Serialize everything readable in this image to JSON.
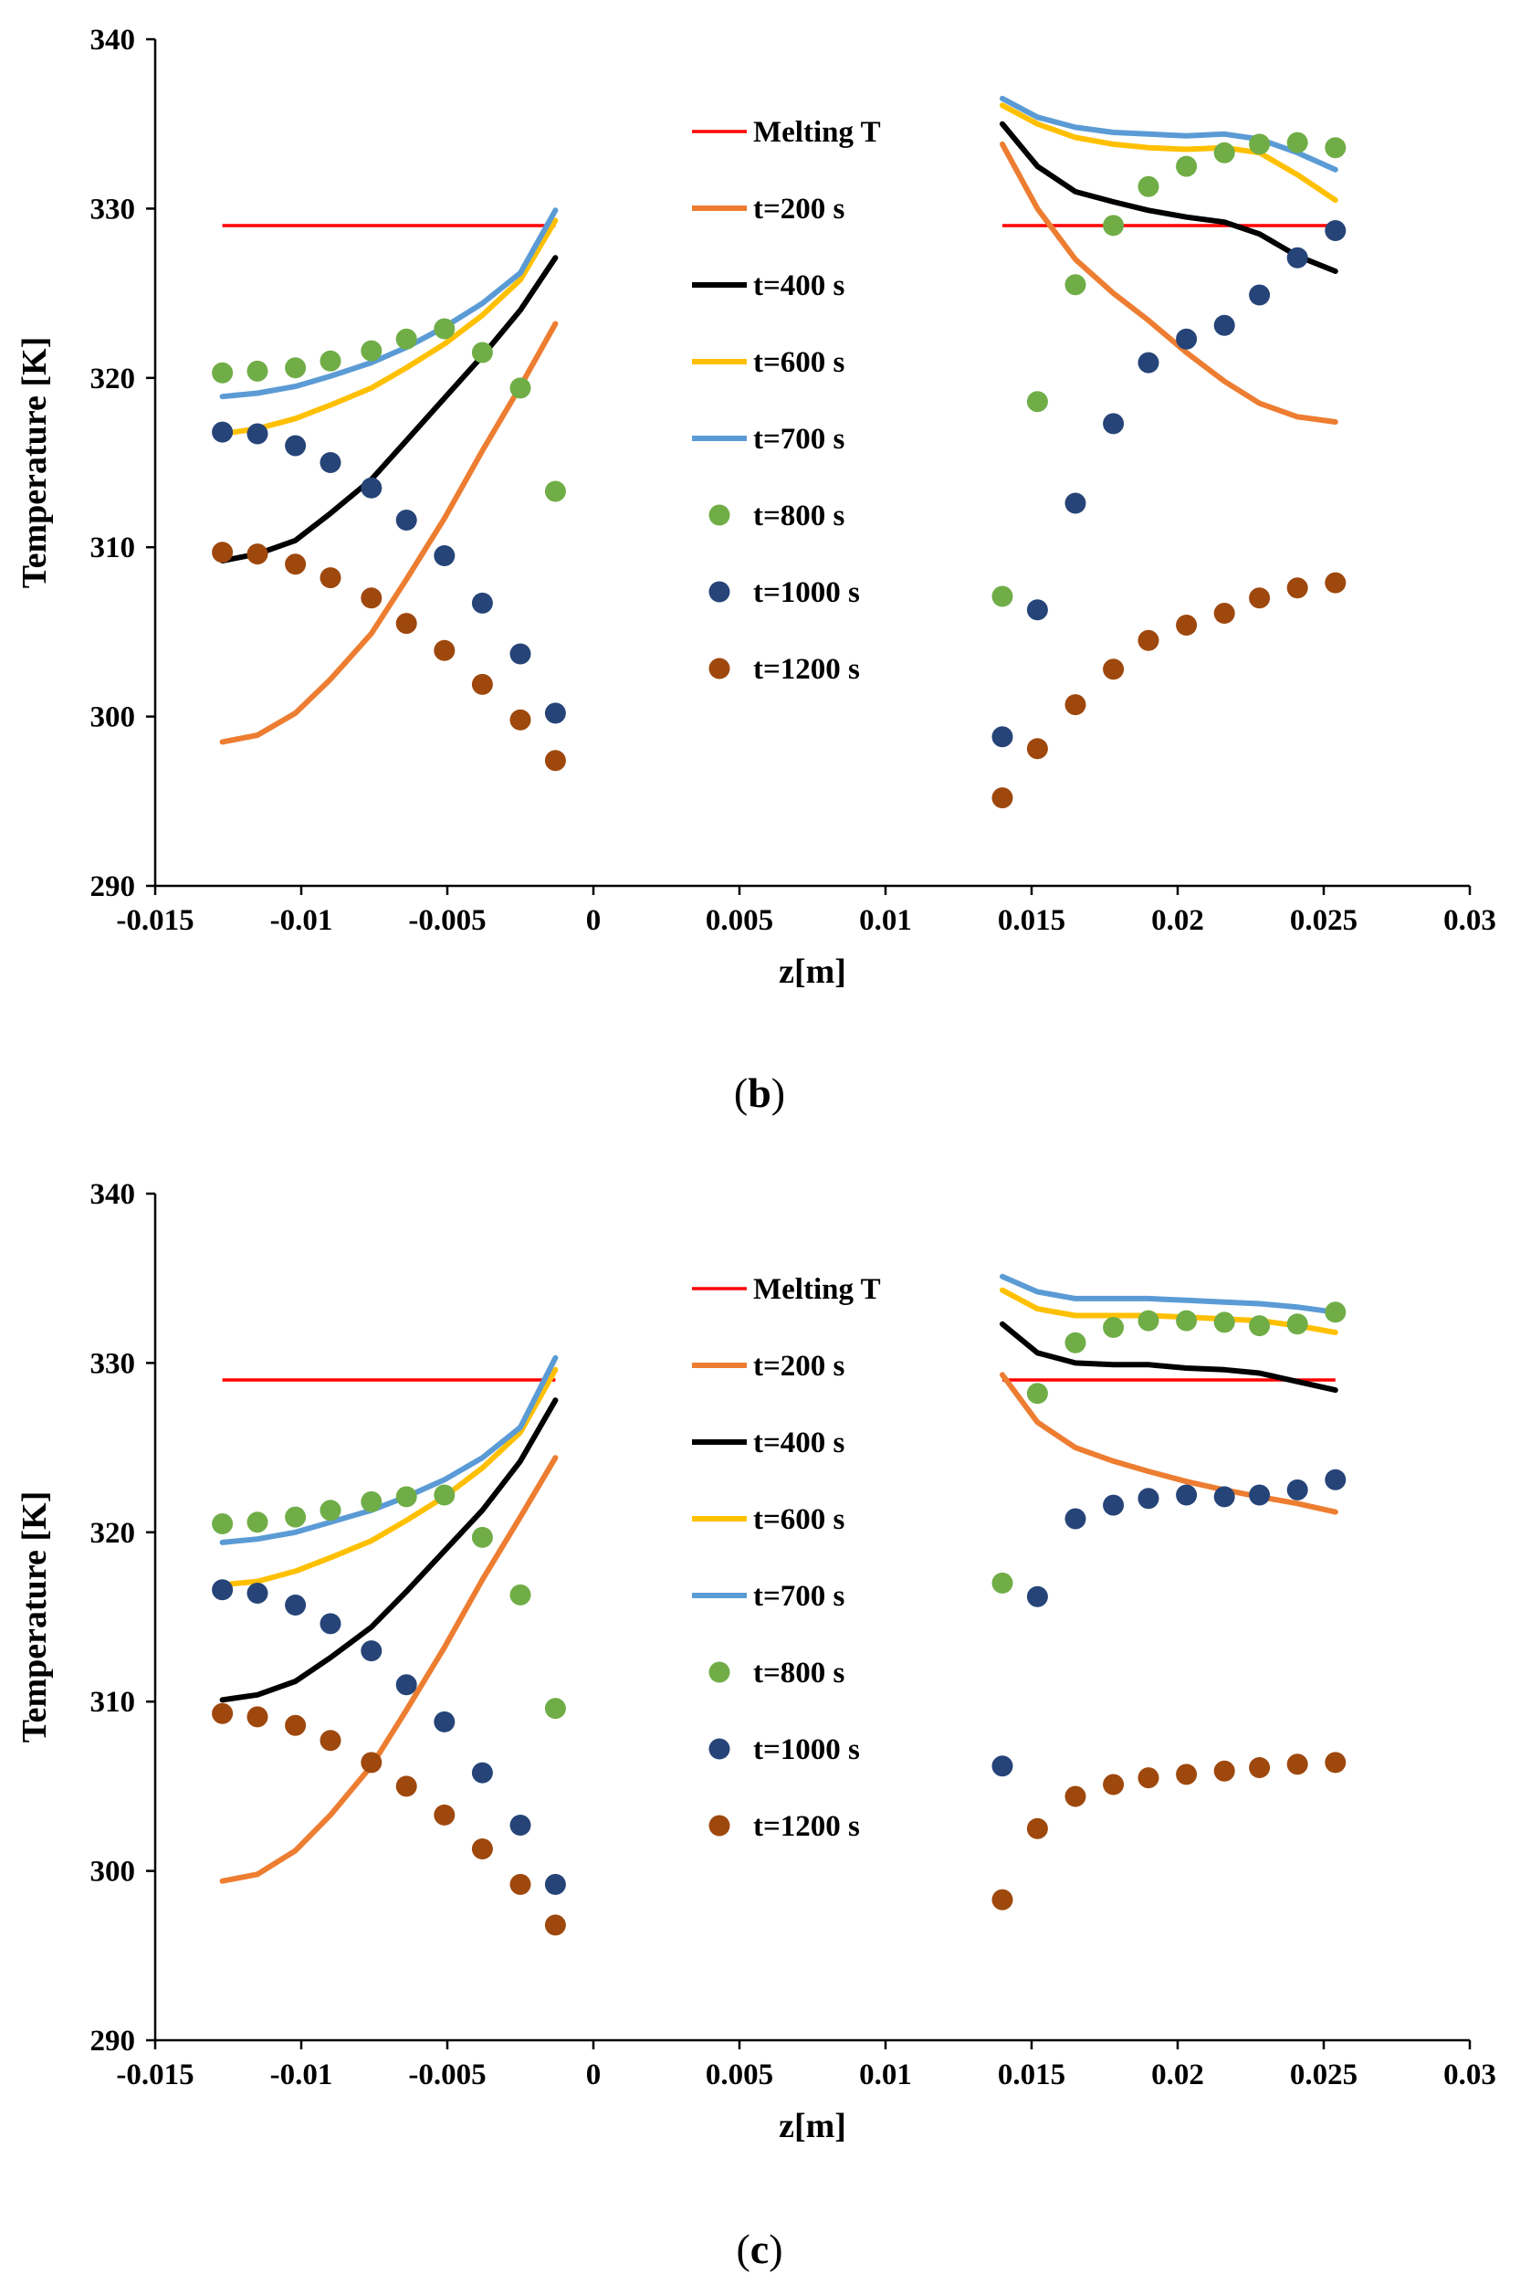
{
  "colors": {
    "melting": "#ff0000",
    "t200": "#ed7d31",
    "t400": "#000000",
    "t600": "#ffc000",
    "t700": "#5b9bd5",
    "t800": "#70ad47",
    "t1000": "#264478",
    "t1200": "#9e480e"
  },
  "legend": [
    {
      "key": "melting",
      "label": "Melting T",
      "kind": "line"
    },
    {
      "key": "t200",
      "label": "t=200 s",
      "kind": "line"
    },
    {
      "key": "t400",
      "label": "t=400 s",
      "kind": "line"
    },
    {
      "key": "t600",
      "label": "t=600 s",
      "kind": "line"
    },
    {
      "key": "t700",
      "label": "t=700 s",
      "kind": "line"
    },
    {
      "key": "t800",
      "label": "t=800 s",
      "kind": "marker"
    },
    {
      "key": "t1000",
      "label": "t=1000 s",
      "kind": "marker"
    },
    {
      "key": "t1200",
      "label": "t=1200 s",
      "kind": "marker"
    }
  ],
  "chart_data": [
    {
      "type": "scatter",
      "caption_letter": "b",
      "xlabel": "z[m]",
      "ylabel": "Temperature [K]",
      "xlim": [
        -0.015,
        0.03
      ],
      "ylim": [
        290,
        340
      ],
      "xticks": [
        -0.015,
        -0.01,
        -0.005,
        0,
        0.005,
        0.01,
        0.015,
        0.02,
        0.025,
        0.03
      ],
      "xtick_labels": [
        "-0.015",
        "-0.01",
        "-0.005",
        "0",
        "0.005",
        "0.01",
        "0.015",
        "0.02",
        "0.025",
        "0.03"
      ],
      "yticks": [
        290,
        300,
        310,
        320,
        330,
        340
      ],
      "ytick_labels": [
        "290",
        "300",
        "310",
        "320",
        "330",
        "340"
      ],
      "legend_position": "top-center",
      "melting_T": 329,
      "series": [
        {
          "name": "t=200 s",
          "key": "t200",
          "style": "line",
          "left": {
            "x": [
              -0.0127,
              -0.0115,
              -0.0102,
              -0.009,
              -0.0076,
              -0.0064,
              -0.0051,
              -0.0038,
              -0.0025,
              -0.0013
            ],
            "y": [
              298.5,
              298.9,
              300.2,
              302.2,
              304.9,
              308.1,
              311.7,
              315.7,
              319.5,
              323.2
            ]
          },
          "right": {
            "x": [
              0.014,
              0.0152,
              0.0165,
              0.0178,
              0.019,
              0.0203,
              0.0216,
              0.0228,
              0.0241,
              0.0254
            ],
            "y": [
              333.8,
              330.0,
              327.0,
              325.0,
              323.4,
              321.5,
              319.8,
              318.5,
              317.7,
              317.4
            ]
          }
        },
        {
          "name": "t=400 s",
          "key": "t400",
          "style": "line",
          "left": {
            "x": [
              -0.0127,
              -0.0115,
              -0.0102,
              -0.009,
              -0.0076,
              -0.0064,
              -0.0051,
              -0.0038,
              -0.0025,
              -0.0013
            ],
            "y": [
              309.2,
              309.6,
              310.4,
              312.0,
              314.0,
              316.3,
              318.8,
              321.3,
              324.0,
              327.1
            ]
          },
          "right": {
            "x": [
              0.014,
              0.0152,
              0.0165,
              0.0178,
              0.019,
              0.0203,
              0.0216,
              0.0228,
              0.0241,
              0.0254
            ],
            "y": [
              335.0,
              332.5,
              331.0,
              330.4,
              329.9,
              329.5,
              329.2,
              328.5,
              327.2,
              326.3
            ]
          }
        },
        {
          "name": "t=600 s",
          "key": "t600",
          "style": "line",
          "left": {
            "x": [
              -0.0127,
              -0.0115,
              -0.0102,
              -0.009,
              -0.0076,
              -0.0064,
              -0.0051,
              -0.0038,
              -0.0025,
              -0.0013
            ],
            "y": [
              316.7,
              317.0,
              317.6,
              318.4,
              319.4,
              320.6,
              322.0,
              323.7,
              325.8,
              329.3
            ]
          },
          "right": {
            "x": [
              0.014,
              0.0152,
              0.0165,
              0.0178,
              0.019,
              0.0203,
              0.0216,
              0.0228,
              0.0241,
              0.0254
            ],
            "y": [
              336.1,
              335.0,
              334.2,
              333.8,
              333.6,
              333.5,
              333.6,
              333.3,
              332.0,
              330.5
            ]
          }
        },
        {
          "name": "t=700 s",
          "key": "t700",
          "style": "line",
          "left": {
            "x": [
              -0.0127,
              -0.0115,
              -0.0102,
              -0.009,
              -0.0076,
              -0.0064,
              -0.0051,
              -0.0038,
              -0.0025,
              -0.0013
            ],
            "y": [
              318.9,
              319.1,
              319.5,
              320.1,
              320.9,
              321.8,
              323.0,
              324.4,
              326.2,
              329.9
            ]
          },
          "right": {
            "x": [
              0.014,
              0.0152,
              0.0165,
              0.0178,
              0.019,
              0.0203,
              0.0216,
              0.0228,
              0.0241,
              0.0254
            ],
            "y": [
              336.5,
              335.4,
              334.8,
              334.5,
              334.4,
              334.3,
              334.4,
              334.1,
              333.3,
              332.3
            ]
          }
        },
        {
          "name": "t=800 s",
          "key": "t800",
          "style": "marker",
          "left": {
            "x": [
              -0.0127,
              -0.0115,
              -0.0102,
              -0.009,
              -0.0076,
              -0.0064,
              -0.0051,
              -0.0038,
              -0.0025,
              -0.0013
            ],
            "y": [
              320.3,
              320.4,
              320.6,
              321.0,
              321.6,
              322.3,
              322.9,
              321.5,
              319.4,
              313.3
            ]
          },
          "right": {
            "x": [
              0.014,
              0.0152,
              0.0165,
              0.0178,
              0.019,
              0.0203,
              0.0216,
              0.0228,
              0.0241,
              0.0254
            ],
            "y": [
              307.1,
              318.6,
              325.5,
              329.0,
              331.3,
              332.5,
              333.3,
              333.8,
              333.9,
              333.6
            ]
          }
        },
        {
          "name": "t=1000 s",
          "key": "t1000",
          "style": "marker",
          "left": {
            "x": [
              -0.0127,
              -0.0115,
              -0.0102,
              -0.009,
              -0.0076,
              -0.0064,
              -0.0051,
              -0.0038,
              -0.0025,
              -0.0013
            ],
            "y": [
              316.8,
              316.7,
              316.0,
              315.0,
              313.5,
              311.6,
              309.5,
              306.7,
              303.7,
              300.2
            ]
          },
          "right": {
            "x": [
              0.014,
              0.0152,
              0.0165,
              0.0178,
              0.019,
              0.0203,
              0.0216,
              0.0228,
              0.0241,
              0.0254
            ],
            "y": [
              298.8,
              306.3,
              312.6,
              317.3,
              320.9,
              322.3,
              323.1,
              324.9,
              327.1,
              328.7
            ]
          }
        },
        {
          "name": "t=1200 s",
          "key": "t1200",
          "style": "marker",
          "left": {
            "x": [
              -0.0127,
              -0.0115,
              -0.0102,
              -0.009,
              -0.0076,
              -0.0064,
              -0.0051,
              -0.0038,
              -0.0025,
              -0.0013
            ],
            "y": [
              309.7,
              309.6,
              309.0,
              308.2,
              307.0,
              305.5,
              303.9,
              301.9,
              299.8,
              297.4
            ]
          },
          "right": {
            "x": [
              0.014,
              0.0152,
              0.0165,
              0.0178,
              0.019,
              0.0203,
              0.0216,
              0.0228,
              0.0241,
              0.0254
            ],
            "y": [
              295.2,
              298.1,
              300.7,
              302.8,
              304.5,
              305.4,
              306.1,
              307.0,
              307.6,
              307.9
            ]
          }
        }
      ]
    },
    {
      "type": "scatter",
      "caption_letter": "c",
      "xlabel": "z[m]",
      "ylabel": "Temperature [K]",
      "xlim": [
        -0.015,
        0.03
      ],
      "ylim": [
        290,
        340
      ],
      "xticks": [
        -0.015,
        -0.01,
        -0.005,
        0,
        0.005,
        0.01,
        0.015,
        0.02,
        0.025,
        0.03
      ],
      "xtick_labels": [
        "-0.015",
        "-0.01",
        "-0.005",
        "0",
        "0.005",
        "0.01",
        "0.015",
        "0.02",
        "0.025",
        "0.03"
      ],
      "yticks": [
        290,
        300,
        310,
        320,
        330,
        340
      ],
      "ytick_labels": [
        "290",
        "300",
        "310",
        "320",
        "330",
        "340"
      ],
      "legend_position": "top-center",
      "melting_T": 329,
      "series": [
        {
          "name": "t=200 s",
          "key": "t200",
          "style": "line",
          "left": {
            "x": [
              -0.0127,
              -0.0115,
              -0.0102,
              -0.009,
              -0.0076,
              -0.0064,
              -0.0051,
              -0.0038,
              -0.0025,
              -0.0013
            ],
            "y": [
              299.4,
              299.8,
              301.2,
              303.3,
              306.2,
              309.5,
              313.2,
              317.2,
              320.9,
              324.4
            ]
          },
          "right": {
            "x": [
              0.014,
              0.0152,
              0.0165,
              0.0178,
              0.019,
              0.0203,
              0.0216,
              0.0228,
              0.0241,
              0.0254
            ],
            "y": [
              329.3,
              326.5,
              325.0,
              324.2,
              323.6,
              323.0,
              322.5,
              322.1,
              321.7,
              321.2
            ]
          }
        },
        {
          "name": "t=400 s",
          "key": "t400",
          "style": "line",
          "left": {
            "x": [
              -0.0127,
              -0.0115,
              -0.0102,
              -0.009,
              -0.0076,
              -0.0064,
              -0.0051,
              -0.0038,
              -0.0025,
              -0.0013
            ],
            "y": [
              310.1,
              310.4,
              311.2,
              312.6,
              314.4,
              316.5,
              318.9,
              321.3,
              324.2,
              327.8
            ]
          },
          "right": {
            "x": [
              0.014,
              0.0152,
              0.0165,
              0.0178,
              0.019,
              0.0203,
              0.0216,
              0.0228,
              0.0241,
              0.0254
            ],
            "y": [
              332.3,
              330.6,
              330.0,
              329.9,
              329.9,
              329.7,
              329.6,
              329.4,
              328.9,
              328.4
            ]
          }
        },
        {
          "name": "t=600 s",
          "key": "t600",
          "style": "line",
          "left": {
            "x": [
              -0.0127,
              -0.0115,
              -0.0102,
              -0.009,
              -0.0076,
              -0.0064,
              -0.0051,
              -0.0038,
              -0.0025,
              -0.0013
            ],
            "y": [
              316.9,
              317.1,
              317.7,
              318.5,
              319.5,
              320.7,
              322.1,
              323.8,
              325.9,
              329.6
            ]
          },
          "right": {
            "x": [
              0.014,
              0.0152,
              0.0165,
              0.0178,
              0.019,
              0.0203,
              0.0216,
              0.0228,
              0.0241,
              0.0254
            ],
            "y": [
              334.3,
              333.2,
              332.8,
              332.8,
              332.8,
              332.7,
              332.6,
              332.5,
              332.2,
              331.8
            ]
          }
        },
        {
          "name": "t=700 s",
          "key": "t700",
          "style": "line",
          "left": {
            "x": [
              -0.0127,
              -0.0115,
              -0.0102,
              -0.009,
              -0.0076,
              -0.0064,
              -0.0051,
              -0.0038,
              -0.0025,
              -0.0013
            ],
            "y": [
              319.4,
              319.6,
              320.0,
              320.6,
              321.3,
              322.1,
              323.1,
              324.4,
              326.2,
              330.3
            ]
          },
          "right": {
            "x": [
              0.014,
              0.0152,
              0.0165,
              0.0178,
              0.019,
              0.0203,
              0.0216,
              0.0228,
              0.0241,
              0.0254
            ],
            "y": [
              335.1,
              334.2,
              333.8,
              333.8,
              333.8,
              333.7,
              333.6,
              333.5,
              333.3,
              333.0
            ]
          }
        },
        {
          "name": "t=800 s",
          "key": "t800",
          "style": "marker",
          "left": {
            "x": [
              -0.0127,
              -0.0115,
              -0.0102,
              -0.009,
              -0.0076,
              -0.0064,
              -0.0051,
              -0.0038,
              -0.0025,
              -0.0013
            ],
            "y": [
              320.5,
              320.6,
              320.9,
              321.3,
              321.8,
              322.1,
              322.2,
              319.7,
              316.3,
              309.6
            ]
          },
          "right": {
            "x": [
              0.014,
              0.0152,
              0.0165,
              0.0178,
              0.019,
              0.0203,
              0.0216,
              0.0228,
              0.0241,
              0.0254
            ],
            "y": [
              317.0,
              328.2,
              331.2,
              332.1,
              332.5,
              332.5,
              332.4,
              332.2,
              332.3,
              333.0
            ]
          }
        },
        {
          "name": "t=1000 s",
          "key": "t1000",
          "style": "marker",
          "left": {
            "x": [
              -0.0127,
              -0.0115,
              -0.0102,
              -0.009,
              -0.0076,
              -0.0064,
              -0.0051,
              -0.0038,
              -0.0025,
              -0.0013
            ],
            "y": [
              316.6,
              316.4,
              315.7,
              314.6,
              313.0,
              311.0,
              308.8,
              305.8,
              302.7,
              299.2
            ]
          },
          "right": {
            "x": [
              0.014,
              0.0152,
              0.0165,
              0.0178,
              0.019,
              0.0203,
              0.0216,
              0.0228,
              0.0241,
              0.0254
            ],
            "y": [
              306.2,
              316.2,
              320.8,
              321.6,
              322.0,
              322.2,
              322.1,
              322.2,
              322.5,
              323.1
            ]
          }
        },
        {
          "name": "t=1200 s",
          "key": "t1200",
          "style": "marker",
          "left": {
            "x": [
              -0.0127,
              -0.0115,
              -0.0102,
              -0.009,
              -0.0076,
              -0.0064,
              -0.0051,
              -0.0038,
              -0.0025,
              -0.0013
            ],
            "y": [
              309.3,
              309.1,
              308.6,
              307.7,
              306.4,
              305.0,
              303.3,
              301.3,
              299.2,
              296.8
            ]
          },
          "right": {
            "x": [
              0.014,
              0.0152,
              0.0165,
              0.0178,
              0.019,
              0.0203,
              0.0216,
              0.0228,
              0.0241,
              0.0254
            ],
            "y": [
              298.3,
              302.5,
              304.4,
              305.1,
              305.5,
              305.7,
              305.9,
              306.1,
              306.3,
              306.4
            ]
          }
        }
      ]
    }
  ]
}
